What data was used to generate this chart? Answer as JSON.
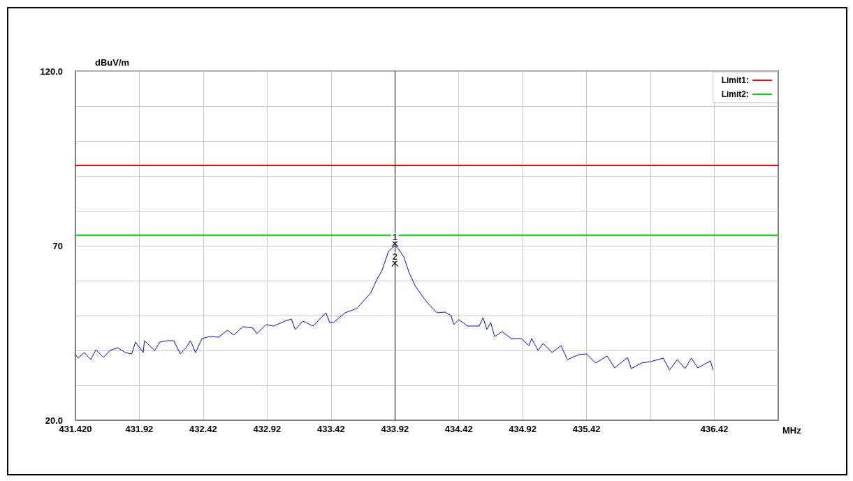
{
  "chart_data": {
    "type": "line",
    "xlabel": "MHz",
    "ylabel": "dBuV/m",
    "xlim": [
      431.42,
      436.92
    ],
    "xticks": [
      {
        "value": 431.42,
        "label": "431.420"
      },
      431.92,
      432.42,
      432.92,
      433.42,
      433.92,
      434.42,
      434.92,
      435.42,
      {
        "value": 435.92,
        "label": null
      },
      436.42
    ],
    "ylim": [
      20,
      120
    ],
    "yticks": [
      {
        "value": 20,
        "label": "20.0"
      },
      {
        "value": 30,
        "label": null
      },
      {
        "value": 40,
        "label": null
      },
      {
        "value": 50,
        "label": null
      },
      {
        "value": 60,
        "label": null
      },
      70,
      {
        "value": 80,
        "label": null
      },
      {
        "value": 90,
        "label": null
      },
      {
        "value": 100,
        "label": null
      },
      {
        "value": 110,
        "label": null
      },
      {
        "value": 120,
        "label": "120.0"
      }
    ],
    "grid": true,
    "legend": "top right",
    "marker": "none",
    "line_style": "solid",
    "ref_lines": [
      {
        "axis": "x",
        "value": 433.92,
        "color": "#000000"
      }
    ],
    "annotations": [
      {
        "text": "1",
        "x": 433.92,
        "y": 70.6
      },
      {
        "text": "2",
        "x": 433.92,
        "y": 65
      }
    ],
    "series": [
      {
        "name": "Limit1:",
        "color": "#ff0000",
        "x": [
          431.42,
          436.92
        ],
        "values": [
          93,
          93
        ]
      },
      {
        "name": "Limit2:",
        "color": "#00e000",
        "x": [
          431.42,
          436.92
        ],
        "values": [
          73,
          73
        ]
      },
      {
        "color": "#0000ff",
        "x": [
          431.42,
          431.44,
          431.49,
          431.54,
          431.58,
          431.64,
          431.69,
          431.75,
          431.81,
          431.86,
          431.89,
          431.95,
          431.96,
          432.04,
          432.08,
          432.14,
          432.19,
          432.24,
          432.29,
          432.32,
          432.36,
          432.41,
          432.47,
          432.54,
          432.61,
          432.66,
          432.73,
          432.81,
          432.84,
          432.91,
          432.97,
          433.06,
          433.11,
          433.14,
          433.2,
          433.28,
          433.38,
          433.41,
          433.44,
          433.53,
          433.62,
          433.67,
          433.73,
          433.78,
          433.82,
          433.87,
          433.92,
          433.95,
          433.99,
          434.03,
          434.08,
          434.13,
          434.18,
          434.25,
          434.31,
          434.36,
          434.38,
          434.42,
          434.49,
          434.58,
          434.61,
          434.64,
          434.67,
          434.7,
          434.76,
          434.83,
          434.91,
          434.97,
          434.99,
          435.04,
          435.08,
          435.15,
          435.22,
          435.27,
          435.36,
          435.42,
          435.49,
          435.58,
          435.64,
          435.74,
          435.77,
          435.85,
          435.92,
          436.02,
          436.07,
          436.13,
          436.19,
          436.24,
          436.29,
          436.39,
          436.41
        ],
        "values": [
          38.8,
          37.8,
          39.4,
          37.4,
          40.2,
          38,
          40,
          40.8,
          39.4,
          39,
          42.4,
          39.4,
          42.8,
          40,
          42.4,
          42.8,
          42.8,
          39,
          41,
          42.8,
          39.4,
          43.4,
          44,
          43.8,
          45.8,
          44.4,
          46.8,
          46.4,
          44.8,
          47.4,
          47,
          48.4,
          49,
          46,
          48.4,
          47,
          50.8,
          48,
          48,
          50.8,
          52,
          54,
          56.4,
          60.4,
          63,
          68.4,
          70,
          69,
          66.8,
          62.4,
          58.4,
          55.8,
          53.4,
          50.8,
          51,
          50,
          47.4,
          48.8,
          47,
          47,
          49.4,
          46,
          48,
          44,
          45.4,
          43.4,
          43.4,
          41.4,
          43.4,
          40,
          42,
          39.4,
          41.4,
          37.4,
          38.8,
          39,
          36.4,
          38.4,
          35,
          38,
          34.8,
          36.4,
          36.8,
          37.8,
          34.4,
          37.4,
          34.8,
          37.8,
          35,
          37,
          34.4
        ]
      },
      {
        "type": "scatter",
        "marker": "cross",
        "color": "#000000",
        "x": [
          433.92,
          433.92
        ],
        "values": [
          70.6,
          65
        ]
      }
    ]
  }
}
